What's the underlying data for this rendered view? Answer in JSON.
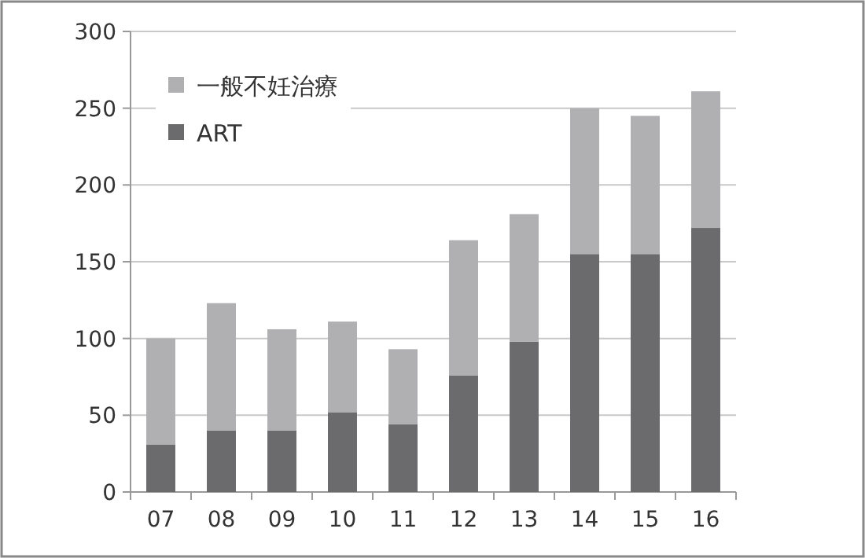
{
  "chart_data": {
    "type": "bar",
    "stacked": true,
    "categories": [
      "07",
      "08",
      "09",
      "10",
      "11",
      "12",
      "13",
      "14",
      "15",
      "16"
    ],
    "series": [
      {
        "name": "ART",
        "color": "#6b6b6e",
        "values": [
          31,
          40,
          40,
          52,
          44,
          76,
          98,
          155,
          155,
          172
        ]
      },
      {
        "name": "一般不妊治療",
        "color": "#b0b0b2",
        "values": [
          69,
          83,
          66,
          59,
          49,
          88,
          83,
          95,
          90,
          89
        ]
      }
    ],
    "ylim": [
      0,
      300
    ],
    "yticks": [
      0,
      50,
      100,
      150,
      200,
      250,
      300
    ],
    "grid": "y",
    "legend": "top left"
  }
}
